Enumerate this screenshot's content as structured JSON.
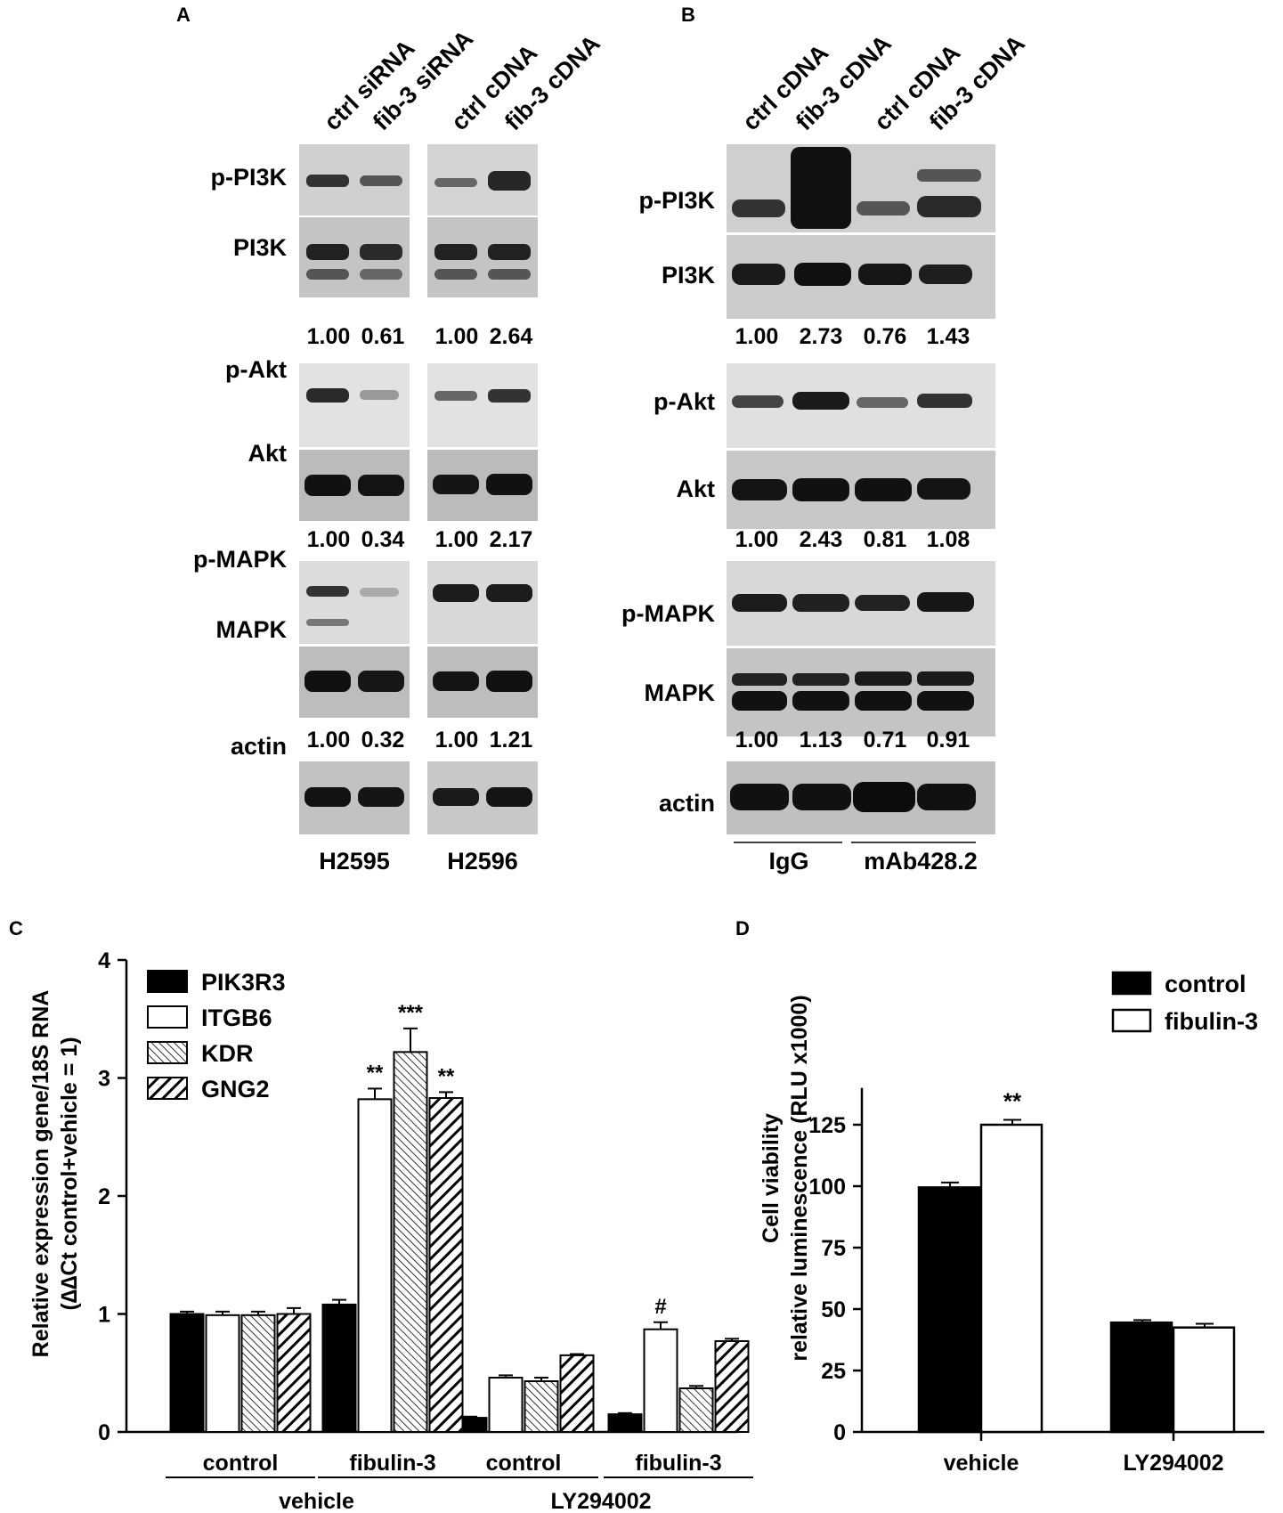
{
  "panels": {
    "A": {
      "label": "A",
      "lanes": [
        "ctrl siRNA",
        "fib-3 siRNA",
        "ctrl cDNA",
        "fib-3 cDNA"
      ],
      "proteins": [
        "p-PI3K",
        "PI3K",
        "p-Akt",
        "Akt",
        "p-MAPK",
        "MAPK",
        "actin"
      ],
      "ratios": [
        [
          "1.00",
          "0.61",
          "1.00",
          "2.64"
        ],
        [
          "1.00",
          "0.34",
          "1.00",
          "2.17"
        ],
        [
          "1.00",
          "0.32",
          "1.00",
          "1.21"
        ]
      ],
      "cell_lines": [
        "H2595",
        "H2596"
      ]
    },
    "B": {
      "label": "B",
      "lanes": [
        "ctrl cDNA",
        "fib-3 cDNA",
        "ctrl cDNA",
        "fib-3 cDNA"
      ],
      "proteins": [
        "p-PI3K",
        "PI3K",
        "p-Akt",
        "Akt",
        "p-MAPK",
        "MAPK",
        "actin"
      ],
      "ratios": [
        [
          "1.00",
          "2.73",
          "0.76",
          "1.43"
        ],
        [
          "1.00",
          "2.43",
          "0.81",
          "1.08"
        ],
        [
          "1.00",
          "1.13",
          "0.71",
          "0.91"
        ]
      ],
      "groups": [
        "IgG",
        "mAb428.2"
      ]
    }
  },
  "colors": {
    "black": "#000000",
    "white": "#ffffff",
    "blot_bg": "#d6d6d6",
    "band": "#1a1a1a"
  },
  "chart_data": [
    {
      "panel": "C",
      "type": "bar",
      "ylabel_line1": "Relative expression gene/18S RNA",
      "ylabel_line2": "(∆∆Ct  control+vehicle = 1)",
      "ylim": [
        0,
        4
      ],
      "yticks": [
        "0",
        "1",
        "2",
        "3",
        "4"
      ],
      "categories": [
        "control",
        "fibulin-3",
        "control",
        "fibulin-3"
      ],
      "groups": [
        "vehicle",
        "LY294002"
      ],
      "legend_position": "top-left",
      "series": [
        {
          "name": "PIK3R3",
          "fill": "solid",
          "values": [
            1.0,
            1.08,
            0.12,
            0.15
          ],
          "errors": [
            0.02,
            0.04,
            0.01,
            0.01
          ]
        },
        {
          "name": "ITGB6",
          "fill": "open",
          "values": [
            0.99,
            2.82,
            0.46,
            0.87
          ],
          "errors": [
            0.03,
            0.09,
            0.02,
            0.06
          ]
        },
        {
          "name": "KDR",
          "fill": "hatch",
          "values": [
            0.99,
            3.22,
            0.43,
            0.37
          ],
          "errors": [
            0.03,
            0.2,
            0.03,
            0.02
          ]
        },
        {
          "name": "GNG2",
          "fill": "stripe",
          "values": [
            1.0,
            2.83,
            0.65,
            0.77
          ],
          "errors": [
            0.05,
            0.05,
            0.01,
            0.02
          ]
        }
      ],
      "annotations": [
        {
          "text": "**",
          "category": 1,
          "series": 1
        },
        {
          "text": "***",
          "category": 1,
          "series": 2
        },
        {
          "text": "**",
          "category": 1,
          "series": 3
        },
        {
          "text": "#",
          "category": 3,
          "series": 1
        }
      ]
    },
    {
      "panel": "D",
      "type": "bar",
      "ylabel_line1": "Cell viability",
      "ylabel_line2": "relative luminescence (RLU x1000)",
      "ylim": [
        0,
        140
      ],
      "yticks": [
        "0",
        "25",
        "50",
        "75",
        "100",
        "125"
      ],
      "categories": [
        "vehicle",
        "LY294002"
      ],
      "legend_position": "top-right",
      "series": [
        {
          "name": "control",
          "fill": "solid",
          "values": [
            99.5,
            44.5
          ],
          "errors": [
            2.0,
            1.0
          ]
        },
        {
          "name": "fibulin-3",
          "fill": "open",
          "values": [
            125.0,
            42.5
          ],
          "errors": [
            2.0,
            1.5
          ]
        }
      ],
      "annotations": [
        {
          "text": "**",
          "category": 0,
          "series": 1
        }
      ]
    }
  ]
}
